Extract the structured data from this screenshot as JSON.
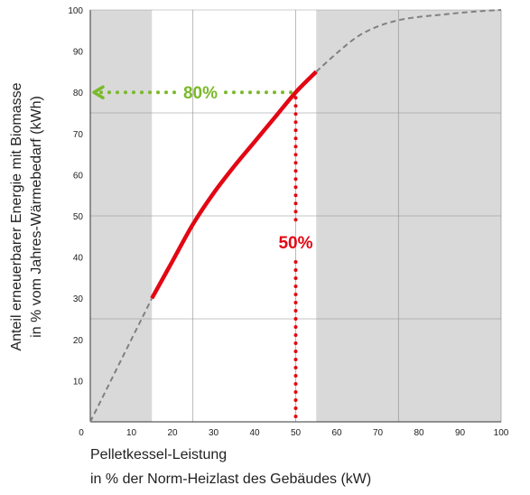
{
  "chart_data": {
    "type": "line",
    "xlabel_line1": "Pelletkessel-Leistung",
    "xlabel_line2": "in % der Norm-Heizlast des Gebäudes (kW)",
    "ylabel_line1": "Anteil erneuerbarer Energie mit Biomasse",
    "ylabel_line2": "in % vom Jahres-Wärmebedarf (kWh)",
    "xlim": [
      0,
      100
    ],
    "ylim": [
      0,
      100
    ],
    "x_ticks": [
      0,
      10,
      20,
      30,
      40,
      50,
      60,
      70,
      80,
      90,
      100
    ],
    "y_ticks": [
      10,
      20,
      30,
      40,
      50,
      60,
      70,
      80,
      90,
      100
    ],
    "shaded_x_ranges": [
      [
        0,
        15
      ],
      [
        55,
        100
      ]
    ],
    "grid": true,
    "series": [
      {
        "style": "dashed",
        "color": "#808080",
        "points": [
          [
            0,
            0
          ],
          [
            5,
            10
          ],
          [
            10,
            20
          ],
          [
            15,
            30
          ]
        ]
      },
      {
        "style": "solid",
        "color": "#e30613",
        "points": [
          [
            15,
            30
          ],
          [
            20,
            39
          ],
          [
            25,
            48
          ],
          [
            30,
            55.5
          ],
          [
            35,
            62
          ],
          [
            40,
            68
          ],
          [
            45,
            74
          ],
          [
            50,
            80
          ],
          [
            55,
            85
          ]
        ]
      },
      {
        "style": "dashed",
        "color": "#808080",
        "points": [
          [
            55,
            85
          ],
          [
            60,
            89.5
          ],
          [
            65,
            93.5
          ],
          [
            70,
            96
          ],
          [
            75,
            97.5
          ],
          [
            80,
            98.3
          ],
          [
            85,
            98.8
          ],
          [
            90,
            99.3
          ],
          [
            95,
            99.7
          ],
          [
            100,
            100
          ]
        ]
      }
    ],
    "annotations": [
      {
        "id": "share",
        "text": "80%",
        "color": "#7ab929",
        "from": [
          50,
          80
        ],
        "to": [
          0,
          80
        ],
        "arrow": true
      },
      {
        "id": "capacity",
        "text": "50%",
        "color": "#e30613",
        "from": [
          50,
          80
        ],
        "to": [
          50,
          0
        ],
        "arrow": false
      }
    ]
  }
}
